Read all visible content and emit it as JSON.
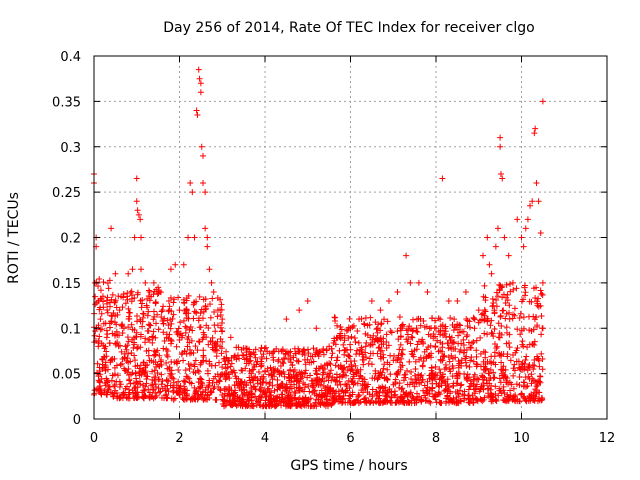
{
  "chart_data": {
    "type": "scatter",
    "title": "Day 256 of 2014, Rate Of TEC Index for receiver clgo",
    "xlabel": "GPS time / hours",
    "ylabel": "ROTI / TECUs",
    "xlim": [
      0,
      12
    ],
    "ylim": [
      0,
      0.4
    ],
    "xticks": [
      0,
      2,
      4,
      6,
      8,
      10,
      12
    ],
    "xtick_labels": [
      "0",
      "2",
      "4",
      "6",
      "8",
      "10",
      "12"
    ],
    "yticks": [
      0,
      0.05,
      0.1,
      0.15,
      0.2,
      0.25,
      0.3,
      0.35,
      0.4
    ],
    "ytick_labels": [
      "0",
      "0.05",
      "0.1",
      "0.15",
      "0.2",
      "0.25",
      "0.3",
      "0.35",
      "0.4"
    ],
    "grid": true,
    "marker": "+",
    "color": "#ff0000",
    "data_extent_hours": [
      0,
      10.5
    ],
    "series": [
      {
        "name": "ROTI",
        "points": [
          [
            0.0,
            0.27
          ],
          [
            0.0,
            0.26
          ],
          [
            0.05,
            0.19
          ],
          [
            0.05,
            0.2
          ],
          [
            0.02,
            0.15
          ],
          [
            0.1,
            0.13
          ],
          [
            0.15,
            0.11
          ],
          [
            0.1,
            0.08
          ],
          [
            0.2,
            0.06
          ],
          [
            0.3,
            0.09
          ],
          [
            0.4,
            0.21
          ],
          [
            0.5,
            0.16
          ],
          [
            0.6,
            0.12
          ],
          [
            0.7,
            0.1
          ],
          [
            0.8,
            0.16
          ],
          [
            0.9,
            0.165
          ],
          [
            0.95,
            0.2
          ],
          [
            1.0,
            0.265
          ],
          [
            1.0,
            0.24
          ],
          [
            1.02,
            0.23
          ],
          [
            1.05,
            0.225
          ],
          [
            1.08,
            0.22
          ],
          [
            1.1,
            0.2
          ],
          [
            1.1,
            0.165
          ],
          [
            1.2,
            0.15
          ],
          [
            1.3,
            0.14
          ],
          [
            1.4,
            0.15
          ],
          [
            1.5,
            0.145
          ],
          [
            1.6,
            0.12
          ],
          [
            1.7,
            0.09
          ],
          [
            1.8,
            0.165
          ],
          [
            1.9,
            0.17
          ],
          [
            2.0,
            0.12
          ],
          [
            2.1,
            0.17
          ],
          [
            2.2,
            0.2
          ],
          [
            2.25,
            0.26
          ],
          [
            2.3,
            0.25
          ],
          [
            2.35,
            0.2
          ],
          [
            2.4,
            0.34
          ],
          [
            2.42,
            0.335
          ],
          [
            2.45,
            0.385
          ],
          [
            2.47,
            0.375
          ],
          [
            2.5,
            0.37
          ],
          [
            2.5,
            0.36
          ],
          [
            2.52,
            0.3
          ],
          [
            2.55,
            0.29
          ],
          [
            2.55,
            0.26
          ],
          [
            2.6,
            0.25
          ],
          [
            2.6,
            0.21
          ],
          [
            2.65,
            0.2
          ],
          [
            2.65,
            0.19
          ],
          [
            2.7,
            0.165
          ],
          [
            2.75,
            0.15
          ],
          [
            2.8,
            0.14
          ],
          [
            2.9,
            0.12
          ],
          [
            3.0,
            0.11
          ],
          [
            3.2,
            0.09
          ],
          [
            3.5,
            0.07
          ],
          [
            3.8,
            0.06
          ],
          [
            4.2,
            0.065
          ],
          [
            4.5,
            0.11
          ],
          [
            4.8,
            0.12
          ],
          [
            5.0,
            0.13
          ],
          [
            5.2,
            0.1
          ],
          [
            5.5,
            0.08
          ],
          [
            5.8,
            0.09
          ],
          [
            6.0,
            0.1
          ],
          [
            6.2,
            0.11
          ],
          [
            6.5,
            0.13
          ],
          [
            6.7,
            0.12
          ],
          [
            6.9,
            0.13
          ],
          [
            7.1,
            0.14
          ],
          [
            7.3,
            0.18
          ],
          [
            7.4,
            0.15
          ],
          [
            7.6,
            0.15
          ],
          [
            7.8,
            0.14
          ],
          [
            8.0,
            0.1
          ],
          [
            8.15,
            0.265
          ],
          [
            8.3,
            0.13
          ],
          [
            8.5,
            0.13
          ],
          [
            8.7,
            0.14
          ],
          [
            8.9,
            0.1
          ],
          [
            9.0,
            0.12
          ],
          [
            9.1,
            0.18
          ],
          [
            9.2,
            0.2
          ],
          [
            9.25,
            0.17
          ],
          [
            9.3,
            0.16
          ],
          [
            9.4,
            0.19
          ],
          [
            9.45,
            0.21
          ],
          [
            9.5,
            0.31
          ],
          [
            9.5,
            0.3
          ],
          [
            9.52,
            0.27
          ],
          [
            9.55,
            0.265
          ],
          [
            9.6,
            0.2
          ],
          [
            9.7,
            0.18
          ],
          [
            9.8,
            0.15
          ],
          [
            9.9,
            0.22
          ],
          [
            10.0,
            0.2
          ],
          [
            10.05,
            0.19
          ],
          [
            10.1,
            0.21
          ],
          [
            10.15,
            0.22
          ],
          [
            10.2,
            0.235
          ],
          [
            10.25,
            0.24
          ],
          [
            10.3,
            0.315
          ],
          [
            10.32,
            0.32
          ],
          [
            10.35,
            0.26
          ],
          [
            10.4,
            0.24
          ],
          [
            10.45,
            0.205
          ],
          [
            10.5,
            0.35
          ],
          [
            10.5,
            0.15
          ],
          [
            10.5,
            0.1
          ]
        ]
      }
    ]
  }
}
